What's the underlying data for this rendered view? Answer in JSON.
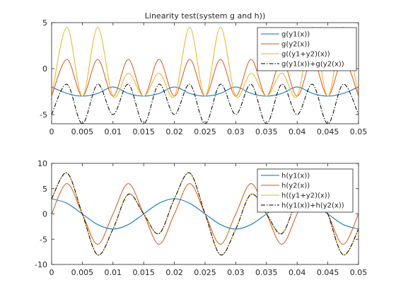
{
  "chart_data": [
    {
      "type": "line",
      "title": "Linearity test(system g and h))",
      "xlim": [
        0,
        0.05
      ],
      "ylim": [
        -6,
        5
      ],
      "xticks": [
        "0",
        "0.005",
        "0.01",
        "0.015",
        "0.02",
        "0.025",
        "0.03",
        "0.035",
        "0.04",
        "0.045",
        "0.05"
      ],
      "xtick_values": [
        0,
        0.005,
        0.01,
        0.015,
        0.02,
        0.025,
        0.03,
        0.035,
        0.04,
        0.045,
        0.05
      ],
      "yticks": [
        "-5",
        "0",
        "5"
      ],
      "ytick_values": [
        -5,
        0,
        5
      ],
      "legend_position": "top-right",
      "series": [
        {
          "name": "g(y1(x))",
          "color": "#0072BD",
          "style": "solid",
          "x": [
            0,
            0.0025,
            0.005,
            0.0075,
            0.01,
            0.0125,
            0.015,
            0.0175,
            0.02,
            0.0225,
            0.025,
            0.0275,
            0.03,
            0.0325,
            0.035,
            0.0375,
            0.04,
            0.0425,
            0.045,
            0.0475,
            0.05
          ],
          "y": [
            -2,
            -2.7,
            -3,
            -2.7,
            -2,
            -2.7,
            -3,
            -2.7,
            -2,
            -2.7,
            -3,
            -2.7,
            -2,
            -2.7,
            -3,
            -2.7,
            -2,
            -2.7,
            -3,
            -2.7,
            -2
          ]
        },
        {
          "name": "g(y2(x))",
          "color": "#D95319",
          "style": "solid",
          "x": [
            0,
            0.0025,
            0.005,
            0.0075,
            0.01,
            0.0125,
            0.015,
            0.0175,
            0.02,
            0.0225,
            0.025,
            0.0275,
            0.03,
            0.0325,
            0.035,
            0.0375,
            0.04,
            0.0425,
            0.045,
            0.0475,
            0.05
          ],
          "y": [
            -3,
            1,
            -3,
            1,
            -3,
            1,
            -3,
            1,
            -3,
            1,
            -3,
            1,
            -3,
            1,
            -3,
            1,
            -3,
            1,
            -3,
            1,
            -3
          ]
        },
        {
          "name": "g((y1+y2)(x))",
          "color": "#EDB120",
          "style": "solid",
          "x": [
            0,
            0.0025,
            0.005,
            0.0075,
            0.01,
            0.0125,
            0.015,
            0.0175,
            0.02,
            0.0225,
            0.025,
            0.0275,
            0.03,
            0.0325,
            0.035,
            0.0375,
            0.04,
            0.0425,
            0.045,
            0.0475,
            0.05
          ],
          "y": [
            -3,
            4.5,
            -3,
            4.5,
            -3,
            -0.5,
            -3,
            -0.5,
            -3,
            4.5,
            -3,
            4.5,
            -3,
            -0.5,
            -3,
            -0.5,
            -3,
            4.5,
            -3,
            4.5,
            -3
          ]
        },
        {
          "name": "g(y1(x))+g(y2(x))",
          "color": "#000000",
          "style": "dashdot",
          "x": [
            0,
            0.0025,
            0.005,
            0.0075,
            0.01,
            0.0125,
            0.015,
            0.0175,
            0.02,
            0.0225,
            0.025,
            0.0275,
            0.03,
            0.0325,
            0.035,
            0.0375,
            0.04,
            0.0425,
            0.045,
            0.0475,
            0.05
          ],
          "y": [
            -5,
            -1.7,
            -6,
            -1.7,
            -5,
            -1.7,
            -6,
            -1.7,
            -5,
            -1.7,
            -6,
            -1.7,
            -5,
            -1.7,
            -6,
            -1.7,
            -5,
            -1.7,
            -6,
            -1.7,
            -5
          ]
        }
      ]
    },
    {
      "type": "line",
      "title": "",
      "xlim": [
        0,
        0.05
      ],
      "ylim": [
        -10,
        10
      ],
      "xticks": [
        "0",
        "0.005",
        "0.01",
        "0.015",
        "0.02",
        "0.025",
        "0.03",
        "0.035",
        "0.04",
        "0.045",
        "0.05"
      ],
      "xtick_values": [
        0,
        0.005,
        0.01,
        0.015,
        0.02,
        0.025,
        0.03,
        0.035,
        0.04,
        0.045,
        0.05
      ],
      "yticks": [
        "-10",
        "-5",
        "0",
        "5",
        "10"
      ],
      "ytick_values": [
        -10,
        -5,
        0,
        5,
        10
      ],
      "legend_position": "top-right",
      "series": [
        {
          "name": "h(y1(x))",
          "color": "#0072BD",
          "style": "solid",
          "x": [
            0,
            0.0025,
            0.005,
            0.0075,
            0.01,
            0.0125,
            0.015,
            0.0175,
            0.02,
            0.0225,
            0.025,
            0.0275,
            0.03,
            0.0325,
            0.035,
            0.0375,
            0.04,
            0.0425,
            0.045,
            0.0475,
            0.05
          ],
          "y": [
            3,
            2.1,
            0,
            -2.1,
            -3,
            -2.1,
            0,
            2.1,
            3,
            2.1,
            0,
            -2.1,
            -3,
            -2.1,
            0,
            2.1,
            3,
            2.1,
            0,
            -2.1,
            -3
          ]
        },
        {
          "name": "h(y2(x))",
          "color": "#D95319",
          "style": "solid",
          "x": [
            0,
            0.0025,
            0.005,
            0.0075,
            0.01,
            0.0125,
            0.015,
            0.0175,
            0.02,
            0.0225,
            0.025,
            0.0275,
            0.03,
            0.0325,
            0.035,
            0.0375,
            0.04,
            0.0425,
            0.045,
            0.0475,
            0.05
          ],
          "y": [
            0,
            6,
            0,
            -6,
            0,
            6,
            0,
            -6,
            0,
            6,
            0,
            -6,
            0,
            6,
            0,
            -6,
            0,
            6,
            0,
            -6,
            0
          ]
        },
        {
          "name": "h((y1+y2)(x))",
          "color": "#EDB120",
          "style": "solid",
          "x": [
            0,
            0.0025,
            0.005,
            0.0075,
            0.01,
            0.0125,
            0.015,
            0.0175,
            0.02,
            0.0225,
            0.025,
            0.0275,
            0.03,
            0.0325,
            0.035,
            0.0375,
            0.04,
            0.0425,
            0.045,
            0.0475,
            0.05
          ],
          "y": [
            3,
            8.1,
            0,
            -8.1,
            -3,
            3.9,
            0,
            -3.9,
            3,
            8.1,
            0,
            -8.1,
            -3,
            3.9,
            0,
            -3.9,
            3,
            8.1,
            0,
            -8.1,
            -3
          ]
        },
        {
          "name": "h(y1(x))+h(y2(x))",
          "color": "#000000",
          "style": "dashdot",
          "x": [
            0,
            0.0025,
            0.005,
            0.0075,
            0.01,
            0.0125,
            0.015,
            0.0175,
            0.02,
            0.0225,
            0.025,
            0.0275,
            0.03,
            0.0325,
            0.035,
            0.0375,
            0.04,
            0.0425,
            0.045,
            0.0475,
            0.05
          ],
          "y": [
            3,
            8.1,
            0,
            -8.1,
            -3,
            3.9,
            0,
            -3.9,
            3,
            8.1,
            0,
            -8.1,
            -3,
            3.9,
            0,
            -3.9,
            3,
            8.1,
            0,
            -8.1,
            -3
          ]
        }
      ]
    }
  ]
}
